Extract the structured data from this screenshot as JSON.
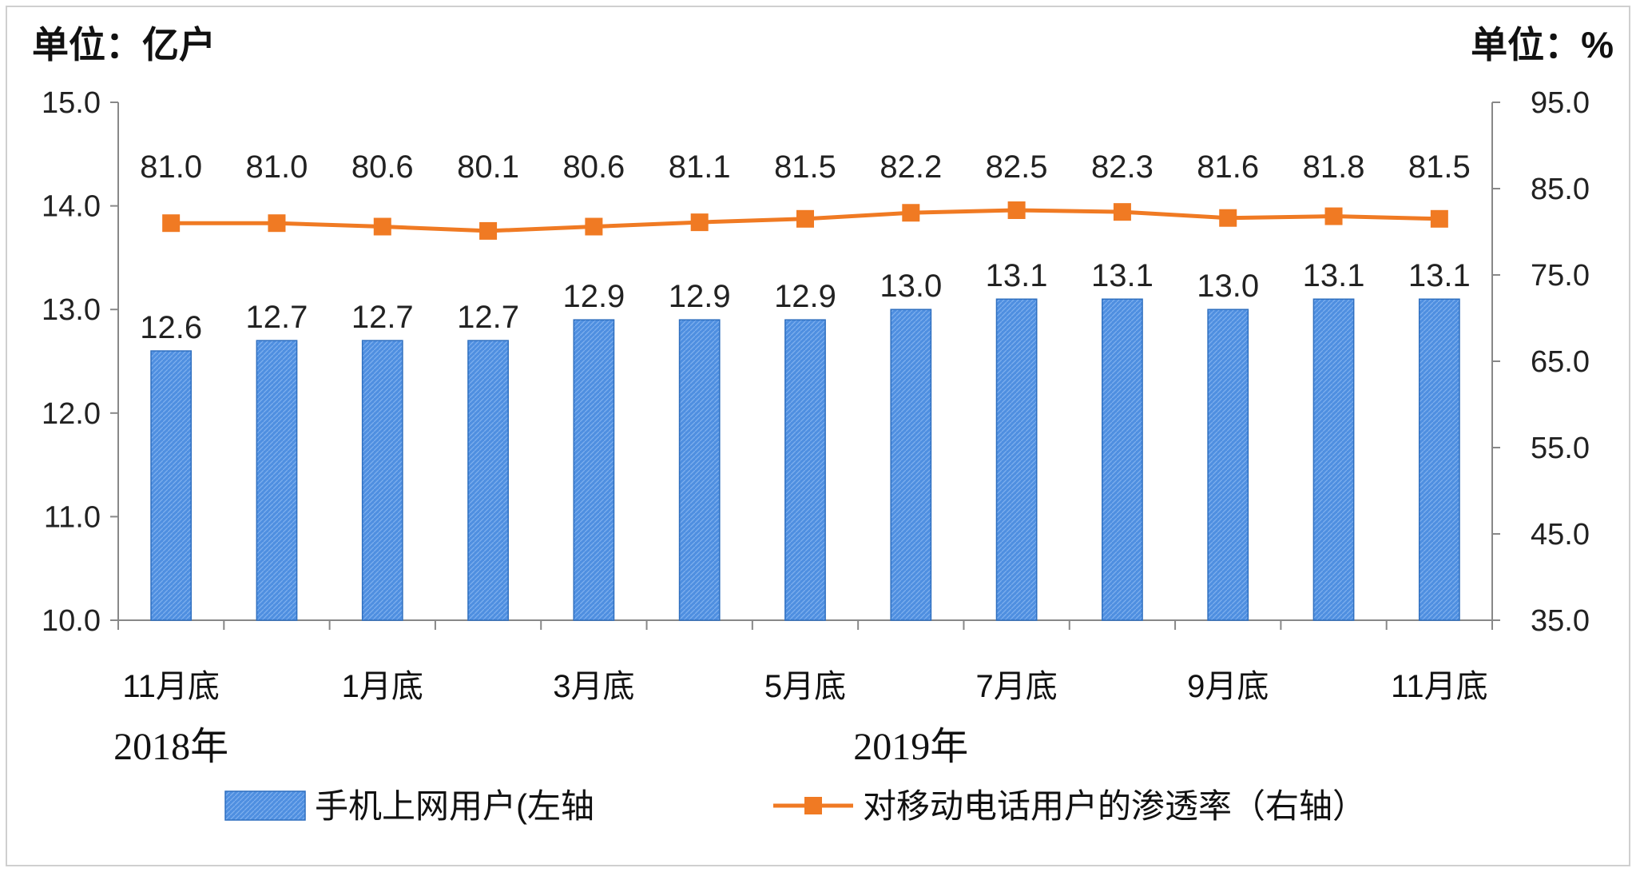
{
  "chart_data": {
    "type": "bar",
    "units": {
      "left": "单位：亿户",
      "right": "单位：%"
    },
    "x": [
      "2018-11",
      "2018-12",
      "2019-01",
      "2019-02",
      "2019-03",
      "2019-04",
      "2019-05",
      "2019-06",
      "2019-07",
      "2019-08",
      "2019-09",
      "2019-10",
      "2019-11"
    ],
    "x_tick_labels": [
      "11月底",
      "",
      "1月底",
      "",
      "3月底",
      "",
      "5月底",
      "",
      "7月底",
      "",
      "9月底",
      "",
      "11月底"
    ],
    "year_labels": [
      {
        "text": "2018年",
        "category_index": 0
      },
      {
        "text": "2019年",
        "category_index": 7
      }
    ],
    "series": [
      {
        "name": "手机上网用户(左轴",
        "type": "bar",
        "axis": "left",
        "color": "#4f8fe0",
        "values": [
          12.6,
          12.7,
          12.7,
          12.7,
          12.9,
          12.9,
          12.9,
          13.0,
          13.1,
          13.1,
          13.0,
          13.1,
          13.1
        ]
      },
      {
        "name": "对移动电话用户的渗透率（右轴）",
        "type": "line",
        "axis": "right",
        "color": "#f07a23",
        "values": [
          81.0,
          81.0,
          80.6,
          80.1,
          80.6,
          81.1,
          81.5,
          82.2,
          82.5,
          82.3,
          81.6,
          81.8,
          81.5
        ]
      }
    ],
    "y_left": {
      "range": [
        10.0,
        15.0
      ],
      "ticks": [
        "10.0",
        "11.0",
        "12.0",
        "13.0",
        "14.0",
        "15.0"
      ]
    },
    "y_right": {
      "range": [
        35.0,
        95.0
      ],
      "ticks": [
        "35.0",
        "45.0",
        "55.0",
        "65.0",
        "75.0",
        "85.0",
        "95.0"
      ]
    },
    "grid": false,
    "legend_position": "bottom"
  }
}
